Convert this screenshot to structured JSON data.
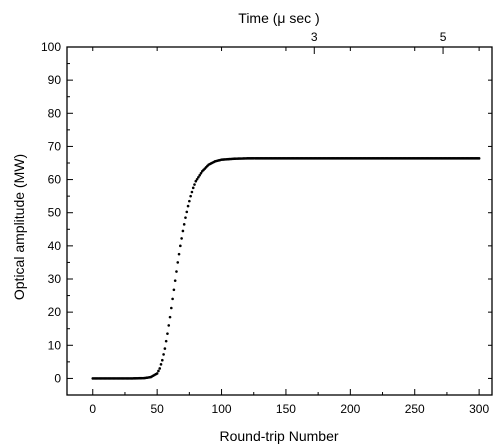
{
  "chart_data": {
    "type": "scatter",
    "title": "",
    "xlabel": "Round-trip Number",
    "ylabel": "Optical amplitude (MW)",
    "top_xlabel": "Time (μ sec )",
    "xlim": [
      -20,
      310
    ],
    "ylim": [
      -5,
      100
    ],
    "x_ticks": [
      "0",
      "50",
      "100",
      "150",
      "200",
      "250",
      "300"
    ],
    "y_ticks": [
      "0",
      "10",
      "20",
      "30",
      "40",
      "50",
      "60",
      "70",
      "80",
      "90",
      "100"
    ],
    "top_ticks": [
      {
        "label": "3",
        "round_trip": 172
      },
      {
        "label": "5",
        "round_trip": 272
      }
    ],
    "grid": false,
    "series": [
      {
        "x": [
          0,
          10,
          20,
          30,
          40,
          45,
          50,
          52,
          54,
          56,
          58,
          60,
          62,
          64,
          66,
          68,
          70,
          72,
          74,
          76,
          78,
          80,
          85,
          90,
          95,
          100,
          110,
          120,
          130,
          150,
          200,
          250,
          300
        ],
        "y": [
          0,
          0,
          0,
          0,
          0.1,
          0.4,
          1.5,
          3,
          5.5,
          9,
          13.5,
          18.5,
          24,
          29.5,
          35,
          40,
          44.5,
          48.5,
          52,
          55,
          57.5,
          59.5,
          62.5,
          64.5,
          65.5,
          66,
          66.3,
          66.4,
          66.4,
          66.4,
          66.4,
          66.4,
          66.4
        ]
      }
    ]
  }
}
